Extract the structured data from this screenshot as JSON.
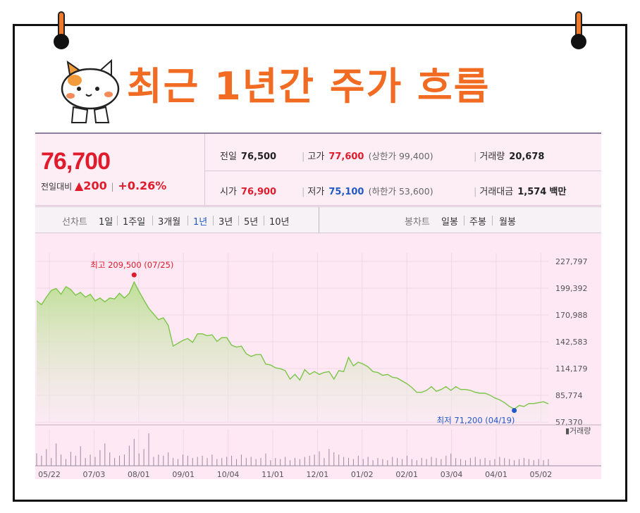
{
  "headline": "최근 1년간 주가 흐름",
  "quote": {
    "price": "76,700",
    "change_label": "전일대비",
    "change_value": "▲200",
    "change_pct": "+0.26%",
    "prev_label": "전일",
    "prev_value": "76,500",
    "high_label": "고가",
    "high_value": "77,600",
    "upper_limit": "(상한가 99,400)",
    "volume_label": "거래량",
    "volume_value": "20,678",
    "open_label": "시가",
    "open_value": "76,900",
    "low_label": "저가",
    "low_value": "75,100",
    "lower_limit": "(하한가 53,600)",
    "amount_label": "거래대금",
    "amount_value": "1,574",
    "amount_unit": "백만"
  },
  "tabs": {
    "line_label": "선차트",
    "line_items": [
      "1일",
      "1주일",
      "3개월",
      "1년",
      "3년",
      "5년",
      "10년"
    ],
    "active_index": 3,
    "candle_label": "봉차트",
    "candle_items": [
      "일봉",
      "주봉",
      "월봉"
    ]
  },
  "colors": {
    "accent": "#f26b22",
    "up": "#e01c2c",
    "down": "#2358c8",
    "line": "#7cc548"
  },
  "chart_data": {
    "type": "area",
    "yticks": [
      "227,797",
      "199,392",
      "170,988",
      "142,583",
      "114,179",
      "85,774",
      "57,370"
    ],
    "ylim": [
      57370,
      227797
    ],
    "xticks": [
      "05/22",
      "07/03",
      "08/01",
      "09/01",
      "10/04",
      "11/01",
      "12/01",
      "01/02",
      "02/01",
      "03/04",
      "04/01",
      "05/02"
    ],
    "high_annotation": "최고 209,500 (07/25)",
    "low_annotation": "최저 71,200 (04/19)",
    "volume_label": "거래량",
    "series": [
      {
        "values": [
          186000,
          182000,
          190000,
          197000,
          199000,
          193000,
          201000,
          198000,
          192000,
          195000,
          190000,
          193000,
          186000,
          189000,
          185000,
          189000,
          188000,
          194000,
          189000,
          194000,
          206000,
          196000,
          187000,
          178000,
          172000,
          166000,
          168000,
          160000,
          138000,
          141000,
          144000,
          146000,
          142000,
          151000,
          151000,
          149000,
          150000,
          143000,
          147000,
          147000,
          139000,
          137000,
          138000,
          130000,
          127000,
          129000,
          129000,
          119000,
          118000,
          115000,
          114000,
          112000,
          103000,
          108000,
          102000,
          113000,
          108000,
          111000,
          108000,
          110000,
          111000,
          103000,
          112000,
          111000,
          126000,
          117000,
          121000,
          119000,
          116000,
          111000,
          110000,
          107000,
          108000,
          105000,
          104000,
          101000,
          98000,
          94000,
          89000,
          89000,
          91000,
          95000,
          90000,
          92000,
          95000,
          91000,
          95000,
          92000,
          92000,
          91000,
          89000,
          88000,
          88000,
          86000,
          83000,
          81000,
          78000,
          74000,
          71200,
          75000,
          74000,
          77000,
          77000,
          78000,
          79000,
          76700
        ]
      }
    ],
    "volume_values": [
      22,
      18,
      30,
      14,
      40,
      20,
      12,
      25,
      18,
      35,
      14,
      20,
      16,
      28,
      40,
      24,
      14,
      18,
      20,
      36,
      48,
      22,
      30,
      58,
      16,
      20,
      18,
      24,
      14,
      12,
      20,
      18,
      14,
      16,
      18,
      14,
      20,
      12,
      14,
      16,
      18,
      12,
      20,
      14,
      16,
      12,
      14,
      22,
      10,
      14,
      12,
      16,
      10,
      14,
      12,
      16,
      18,
      20,
      26,
      14,
      30,
      24,
      20,
      16,
      14,
      12,
      18,
      12,
      16,
      10,
      14,
      12,
      10,
      16,
      14,
      12,
      18,
      12,
      10,
      14,
      12,
      16,
      14,
      12,
      18,
      22,
      14,
      12,
      10,
      14,
      16,
      12,
      14,
      10,
      12,
      16,
      14,
      12,
      10,
      12,
      14,
      12,
      10,
      12,
      10,
      12
    ]
  }
}
